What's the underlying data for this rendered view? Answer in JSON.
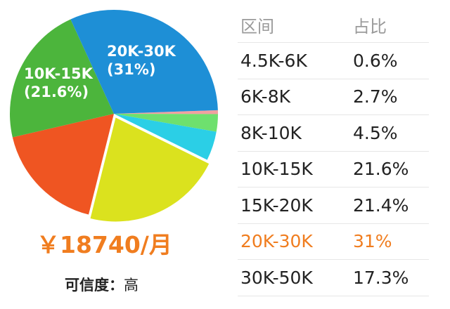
{
  "chart_data": {
    "type": "pie",
    "slices": [
      {
        "label": "4.5K-6K",
        "value": 0.6,
        "color": "#f2a0a0"
      },
      {
        "label": "6K-8K",
        "value": 2.7,
        "color": "#6ee06e"
      },
      {
        "label": "8K-10K",
        "value": 4.5,
        "color": "#2bcfe6"
      },
      {
        "label": "15K-20K",
        "value": 21.4,
        "color": "#dbe21e",
        "exploded": true
      },
      {
        "label": "30K-50K",
        "value": 17.3,
        "color": "#ef5522"
      },
      {
        "label": "10K-15K",
        "value": 21.6,
        "color": "#4cb53c"
      },
      {
        "label": "20K-30K",
        "value": 31,
        "color": "#1e8fd6"
      }
    ],
    "labels_on_chart": [
      {
        "text": "20K-30K\n(31%)",
        "slice": "20K-30K"
      },
      {
        "text": "10K-15K\n(21.6%)",
        "slice": "10K-15K"
      }
    ]
  },
  "salary": "￥18740/月",
  "credibility": {
    "label": "可信度：",
    "value": "高"
  },
  "table": {
    "headers": [
      "区间",
      "占比"
    ],
    "rows": [
      [
        "4.5K-6K",
        "0.6%"
      ],
      [
        "6K-8K",
        "2.7%"
      ],
      [
        "8K-10K",
        "4.5%"
      ],
      [
        "10K-15K",
        "21.6%"
      ],
      [
        "15K-20K",
        "21.4%"
      ],
      [
        "20K-30K",
        "31%"
      ],
      [
        "30K-50K",
        "17.3%"
      ]
    ],
    "highlight_row": 5,
    "highlight_color": "#f07d1f"
  }
}
